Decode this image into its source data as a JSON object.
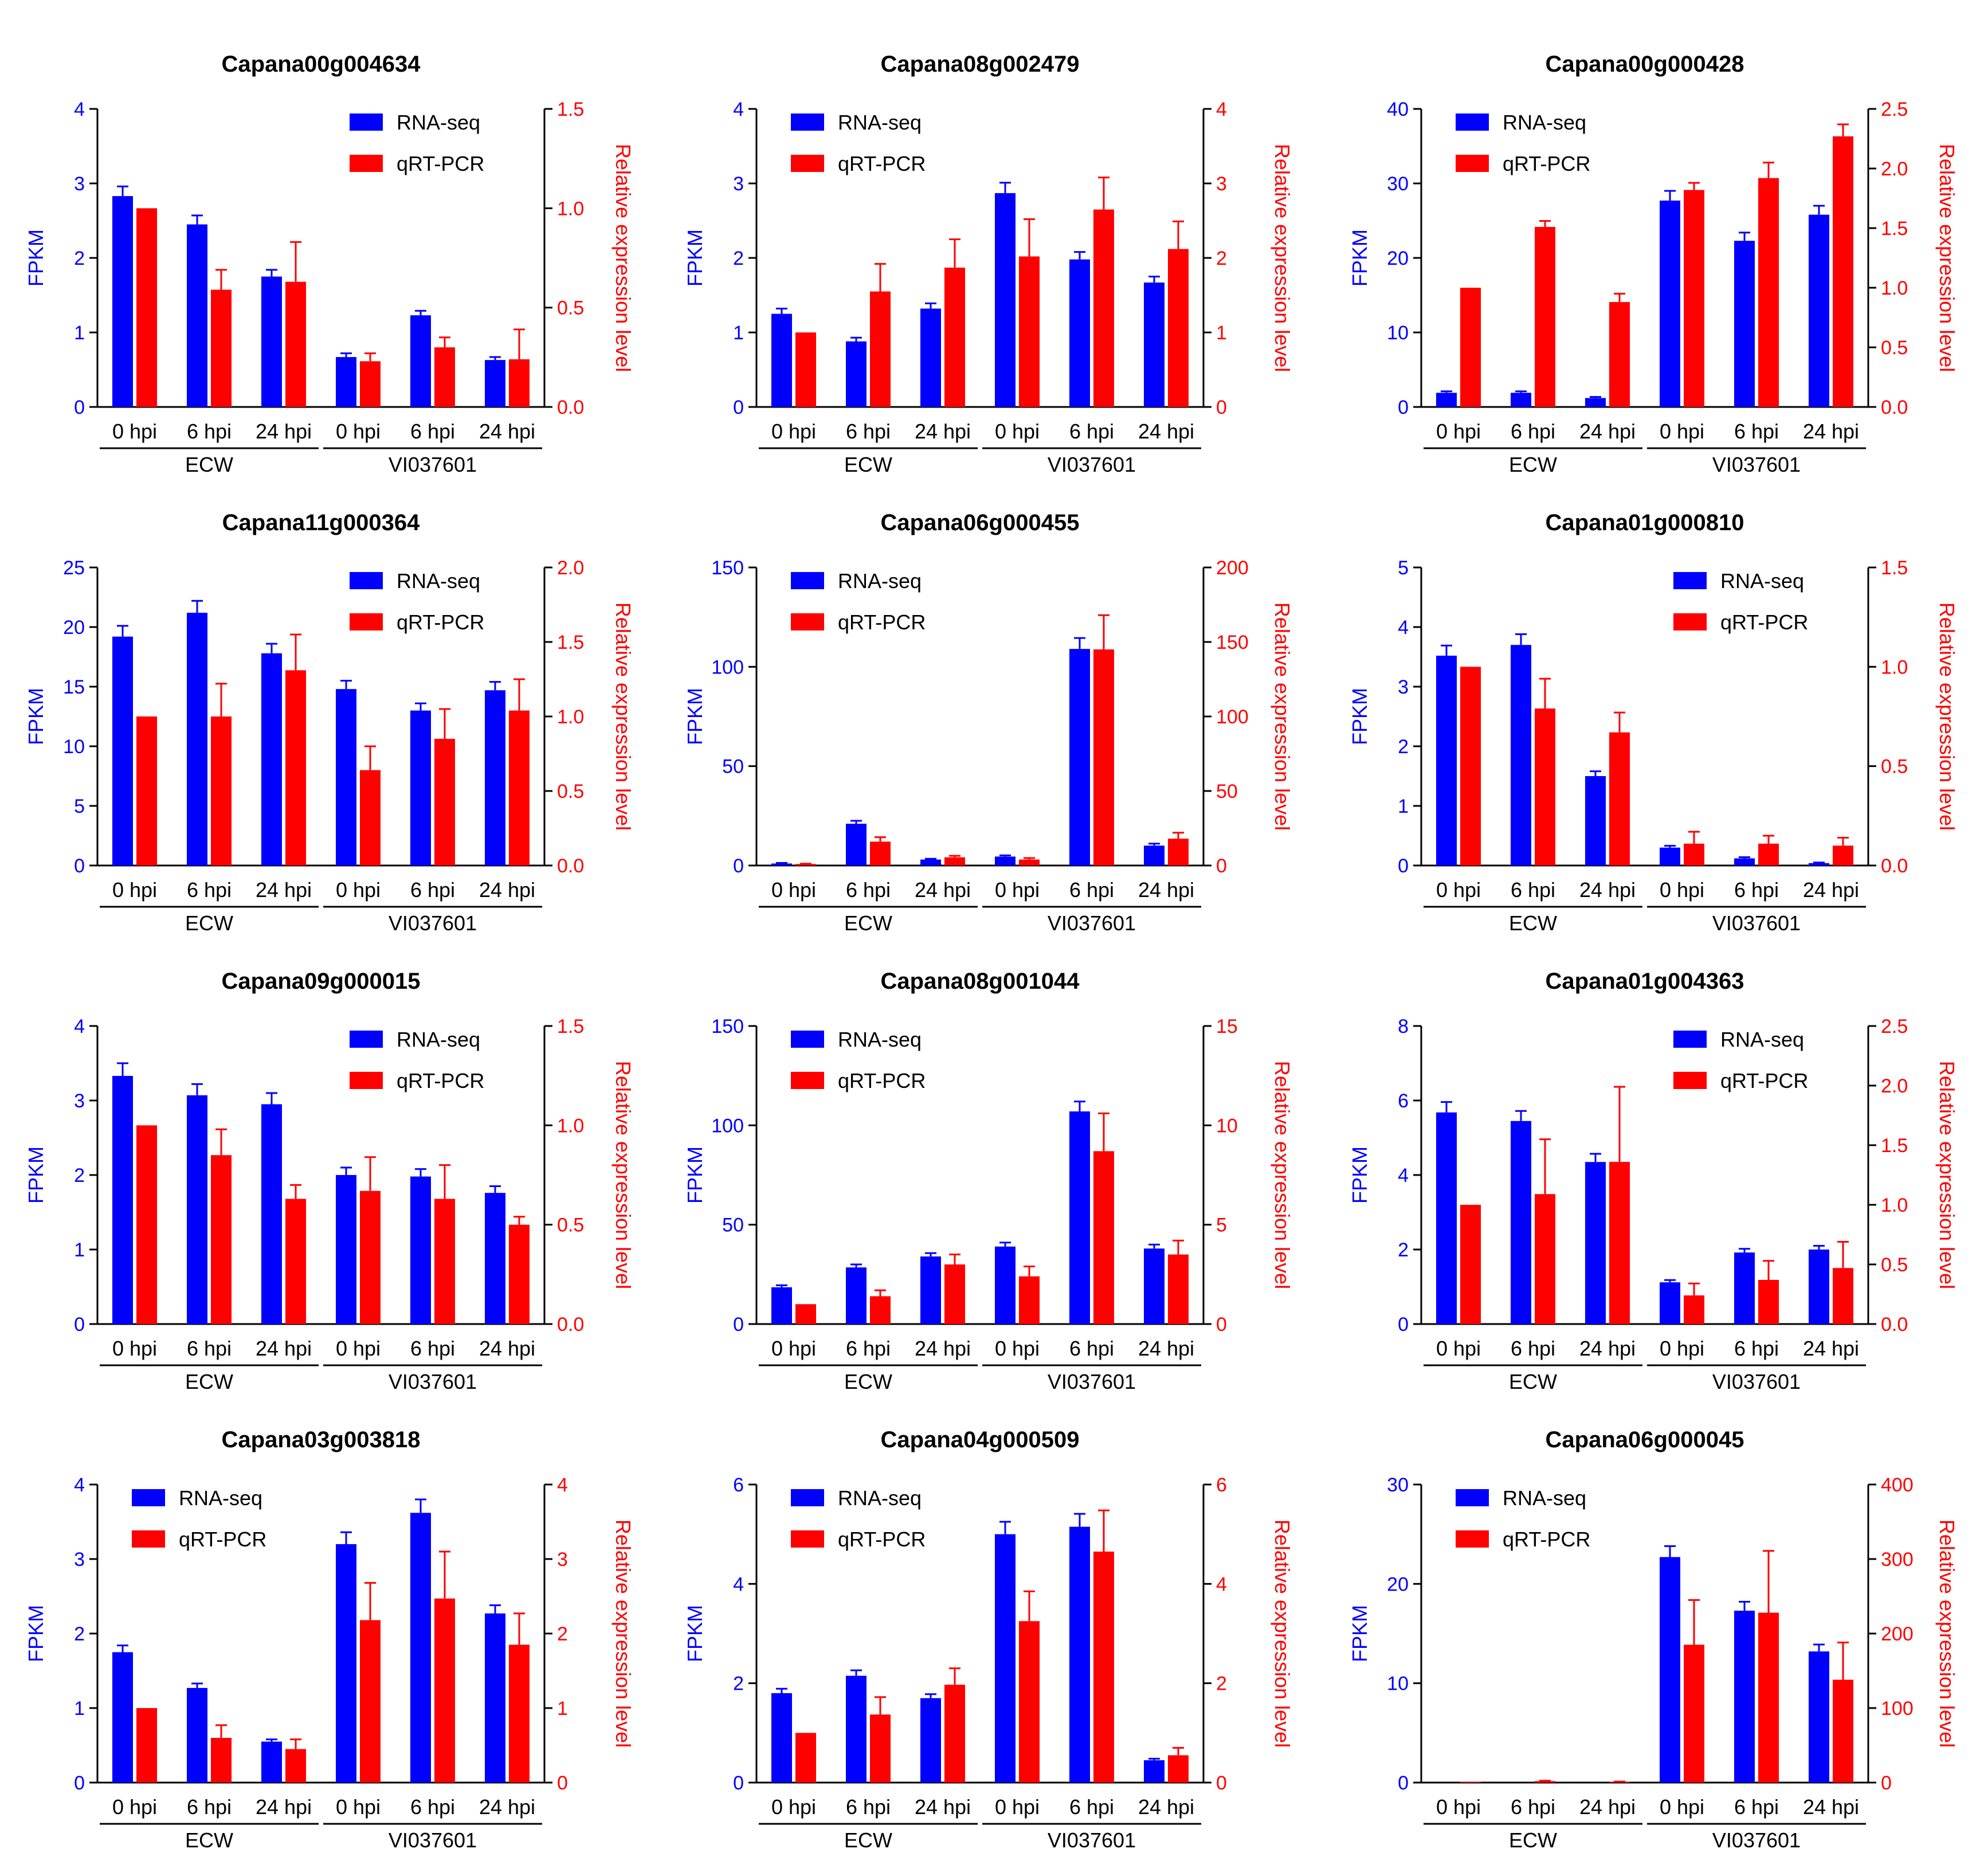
{
  "figure": {
    "legend_rna": "RNA-seq",
    "legend_qrt": "qRT-PCR",
    "left_axis_label": "FPKM",
    "right_axis_label": "Relative expression level"
  },
  "colors": {
    "rna": "#0000ff",
    "qrt": "#ff0000",
    "axis": "#000000"
  },
  "chart_data": [
    {
      "type": "bar",
      "title": "Capana00g004634",
      "categories": [
        "0 hpi",
        "6 hpi",
        "24 hpi",
        "0 hpi",
        "6 hpi",
        "24 hpi"
      ],
      "groups": [
        "ECW",
        "VI037601"
      ],
      "ylabel": "FPKM",
      "y2label": "Relative expression level",
      "ylim": [
        0,
        4
      ],
      "yticks": [
        "0",
        "1",
        "2",
        "3",
        "4"
      ],
      "y2lim": [
        0,
        1.5
      ],
      "y2ticks": [
        "0.0",
        "0.5",
        "1.0",
        "1.5"
      ],
      "legend_position": "top-right",
      "series": [
        {
          "name": "RNA-seq",
          "axis": "left",
          "values": [
            2.83,
            2.45,
            1.75,
            0.67,
            1.23,
            0.63
          ],
          "errors": [
            0.13,
            0.12,
            0.09,
            0.05,
            0.06,
            0.04
          ]
        },
        {
          "name": "qRT-PCR",
          "axis": "right",
          "values": [
            1.0,
            0.59,
            0.63,
            0.23,
            0.3,
            0.24
          ],
          "errors": [
            0,
            0.1,
            0.2,
            0.04,
            0.05,
            0.15
          ]
        }
      ]
    },
    {
      "type": "bar",
      "title": "Capana08g002479",
      "categories": [
        "0 hpi",
        "6 hpi",
        "24 hpi",
        "0 hpi",
        "6 hpi",
        "24 hpi"
      ],
      "groups": [
        "ECW",
        "VI037601"
      ],
      "ylabel": "FPKM",
      "y2label": "Relative expression level",
      "ylim": [
        0,
        4
      ],
      "yticks": [
        "0",
        "1",
        "2",
        "3",
        "4"
      ],
      "y2lim": [
        0,
        4
      ],
      "y2ticks": [
        "0",
        "1",
        "2",
        "3",
        "4"
      ],
      "legend_position": "top-left",
      "series": [
        {
          "name": "RNA-seq",
          "axis": "left",
          "values": [
            1.25,
            0.88,
            1.32,
            2.87,
            1.98,
            1.67
          ],
          "errors": [
            0.07,
            0.05,
            0.07,
            0.14,
            0.1,
            0.08
          ]
        },
        {
          "name": "qRT-PCR",
          "axis": "right",
          "values": [
            1.0,
            1.55,
            1.87,
            2.02,
            2.65,
            2.12
          ],
          "errors": [
            0,
            0.37,
            0.38,
            0.5,
            0.43,
            0.37
          ]
        }
      ]
    },
    {
      "type": "bar",
      "title": "Capana00g000428",
      "categories": [
        "0 hpi",
        "6 hpi",
        "24 hpi",
        "0 hpi",
        "6 hpi",
        "24 hpi"
      ],
      "groups": [
        "ECW",
        "VI037601"
      ],
      "ylabel": "FPKM",
      "y2label": "Relative expression level",
      "ylim": [
        0,
        40
      ],
      "yticks": [
        "0",
        "10",
        "20",
        "30",
        "40"
      ],
      "y2lim": [
        0,
        2.5
      ],
      "y2ticks": [
        "0.0",
        "0.5",
        "1.0",
        "1.5",
        "2.0",
        "2.5"
      ],
      "legend_position": "top-left",
      "series": [
        {
          "name": "RNA-seq",
          "axis": "left",
          "values": [
            1.9,
            1.9,
            1.2,
            27.7,
            22.3,
            25.8
          ],
          "errors": [
            0.2,
            0.2,
            0.15,
            1.3,
            1.1,
            1.2
          ]
        },
        {
          "name": "qRT-PCR",
          "axis": "right",
          "values": [
            1.0,
            1.51,
            0.88,
            1.82,
            1.92,
            2.27
          ],
          "errors": [
            0,
            0.05,
            0.07,
            0.06,
            0.13,
            0.1
          ]
        }
      ]
    },
    {
      "type": "bar",
      "title": "Capana11g000364",
      "categories": [
        "0 hpi",
        "6 hpi",
        "24 hpi",
        "0 hpi",
        "6 hpi",
        "24 hpi"
      ],
      "groups": [
        "ECW",
        "VI037601"
      ],
      "ylabel": "FPKM",
      "y2label": "Relative expression level",
      "ylim": [
        0,
        25
      ],
      "yticks": [
        "0",
        "5",
        "10",
        "15",
        "20",
        "25"
      ],
      "y2lim": [
        0,
        2.0
      ],
      "y2ticks": [
        "0.0",
        "0.5",
        "1.0",
        "1.5",
        "2.0"
      ],
      "legend_position": "top-right",
      "series": [
        {
          "name": "RNA-seq",
          "axis": "left",
          "values": [
            19.2,
            21.2,
            17.8,
            14.8,
            13.0,
            14.7
          ],
          "errors": [
            0.9,
            1.0,
            0.8,
            0.7,
            0.6,
            0.7
          ]
        },
        {
          "name": "qRT-PCR",
          "axis": "right",
          "values": [
            1.0,
            1.0,
            1.31,
            0.64,
            0.85,
            1.04
          ],
          "errors": [
            0,
            0.22,
            0.24,
            0.16,
            0.2,
            0.21
          ]
        }
      ]
    },
    {
      "type": "bar",
      "title": "Capana06g000455",
      "categories": [
        "0 hpi",
        "6 hpi",
        "24 hpi",
        "0 hpi",
        "6 hpi",
        "24 hpi"
      ],
      "groups": [
        "ECW",
        "VI037601"
      ],
      "ylabel": "FPKM",
      "y2label": "Relative expression level",
      "ylim": [
        0,
        150
      ],
      "yticks": [
        "0",
        "50",
        "100",
        "150"
      ],
      "y2lim": [
        0,
        200
      ],
      "y2ticks": [
        "0",
        "50",
        "100",
        "150",
        "200"
      ],
      "legend_position": "top-left",
      "series": [
        {
          "name": "RNA-seq",
          "axis": "left",
          "values": [
            1.0,
            21.0,
            3.0,
            4.5,
            109.0,
            10.0
          ],
          "errors": [
            0.3,
            1.5,
            0.4,
            0.6,
            5.5,
            1.0
          ]
        },
        {
          "name": "qRT-PCR",
          "axis": "right",
          "values": [
            1.0,
            16.0,
            5.5,
            4.0,
            145.0,
            18.0
          ],
          "errors": [
            0.2,
            3.0,
            1.0,
            1.0,
            23.0,
            4.0
          ]
        }
      ]
    },
    {
      "type": "bar",
      "title": "Capana01g000810",
      "categories": [
        "0 hpi",
        "6 hpi",
        "24 hpi",
        "0 hpi",
        "6 hpi",
        "24 hpi"
      ],
      "groups": [
        "ECW",
        "VI037601"
      ],
      "ylabel": "FPKM",
      "y2label": "Relative expression level",
      "ylim": [
        0,
        5
      ],
      "yticks": [
        "0",
        "1",
        "2",
        "3",
        "4",
        "5"
      ],
      "y2lim": [
        0,
        1.5
      ],
      "y2ticks": [
        "0.0",
        "0.5",
        "1.0",
        "1.5"
      ],
      "legend_position": "top-right",
      "series": [
        {
          "name": "RNA-seq",
          "axis": "left",
          "values": [
            3.52,
            3.7,
            1.5,
            0.3,
            0.12,
            0.04
          ],
          "errors": [
            0.17,
            0.18,
            0.08,
            0.03,
            0.02,
            0.01
          ]
        },
        {
          "name": "qRT-PCR",
          "axis": "right",
          "values": [
            1.0,
            0.79,
            0.67,
            0.11,
            0.11,
            0.1
          ],
          "errors": [
            0,
            0.15,
            0.1,
            0.06,
            0.04,
            0.04
          ]
        }
      ]
    },
    {
      "type": "bar",
      "title": "Capana09g000015",
      "categories": [
        "0 hpi",
        "6 hpi",
        "24 hpi",
        "0 hpi",
        "6 hpi",
        "24 hpi"
      ],
      "groups": [
        "ECW",
        "VI037601"
      ],
      "ylabel": "FPKM",
      "y2label": "Relative expression level",
      "ylim": [
        0,
        4
      ],
      "yticks": [
        "0",
        "1",
        "2",
        "3",
        "4"
      ],
      "y2lim": [
        0,
        1.5
      ],
      "y2ticks": [
        "0.0",
        "0.5",
        "1.0",
        "1.5"
      ],
      "legend_position": "top-right",
      "series": [
        {
          "name": "RNA-seq",
          "axis": "left",
          "values": [
            3.33,
            3.07,
            2.95,
            2.0,
            1.98,
            1.76
          ],
          "errors": [
            0.17,
            0.15,
            0.15,
            0.1,
            0.1,
            0.09
          ]
        },
        {
          "name": "qRT-PCR",
          "axis": "right",
          "values": [
            1.0,
            0.85,
            0.63,
            0.67,
            0.63,
            0.5
          ],
          "errors": [
            0,
            0.13,
            0.07,
            0.17,
            0.17,
            0.04
          ]
        }
      ]
    },
    {
      "type": "bar",
      "title": "Capana08g001044",
      "categories": [
        "0 hpi",
        "6 hpi",
        "24 hpi",
        "0 hpi",
        "6 hpi",
        "24 hpi"
      ],
      "groups": [
        "ECW",
        "VI037601"
      ],
      "ylabel": "FPKM",
      "y2label": "Relative expression level",
      "ylim": [
        0,
        150
      ],
      "yticks": [
        "0",
        "50",
        "100",
        "150"
      ],
      "y2lim": [
        0,
        15
      ],
      "y2ticks": [
        "0",
        "5",
        "10",
        "15"
      ],
      "legend_position": "top-left",
      "series": [
        {
          "name": "RNA-seq",
          "axis": "left",
          "values": [
            18.5,
            28.5,
            34.0,
            39.0,
            107.0,
            38.0
          ],
          "errors": [
            1.0,
            1.5,
            1.7,
            2.0,
            5.0,
            2.0
          ]
        },
        {
          "name": "qRT-PCR",
          "axis": "right",
          "values": [
            1.0,
            1.4,
            3.0,
            2.4,
            8.7,
            3.5
          ],
          "errors": [
            0,
            0.3,
            0.5,
            0.5,
            1.9,
            0.7
          ]
        }
      ]
    },
    {
      "type": "bar",
      "title": "Capana01g004363",
      "categories": [
        "0 hpi",
        "6 hpi",
        "24 hpi",
        "0 hpi",
        "6 hpi",
        "24 hpi"
      ],
      "groups": [
        "ECW",
        "VI037601"
      ],
      "ylabel": "FPKM",
      "y2label": "Relative expression level",
      "ylim": [
        0,
        8
      ],
      "yticks": [
        "0",
        "2",
        "4",
        "6",
        "8"
      ],
      "y2lim": [
        0,
        2.5
      ],
      "y2ticks": [
        "0.0",
        "0.5",
        "1.0",
        "1.5",
        "2.0",
        "2.5"
      ],
      "legend_position": "top-right",
      "series": [
        {
          "name": "RNA-seq",
          "axis": "left",
          "values": [
            5.68,
            5.45,
            4.35,
            1.12,
            1.92,
            2.0
          ],
          "errors": [
            0.28,
            0.27,
            0.22,
            0.06,
            0.1,
            0.1
          ]
        },
        {
          "name": "qRT-PCR",
          "axis": "right",
          "values": [
            1.0,
            1.09,
            1.36,
            0.24,
            0.37,
            0.47
          ],
          "errors": [
            0,
            0.46,
            0.63,
            0.1,
            0.16,
            0.22
          ]
        }
      ]
    },
    {
      "type": "bar",
      "title": "Capana03g003818",
      "categories": [
        "0 hpi",
        "6 hpi",
        "24 hpi",
        "0 hpi",
        "6 hpi",
        "24 hpi"
      ],
      "groups": [
        "ECW",
        "VI037601"
      ],
      "ylabel": "FPKM",
      "y2label": "Relative expression level",
      "ylim": [
        0,
        4
      ],
      "yticks": [
        "0",
        "1",
        "2",
        "3",
        "4"
      ],
      "y2lim": [
        0,
        4
      ],
      "y2ticks": [
        "0",
        "1",
        "2",
        "3",
        "4"
      ],
      "legend_position": "top-left",
      "series": [
        {
          "name": "RNA-seq",
          "axis": "left",
          "values": [
            1.75,
            1.27,
            0.55,
            3.2,
            3.62,
            2.27
          ],
          "errors": [
            0.09,
            0.06,
            0.03,
            0.16,
            0.18,
            0.11
          ]
        },
        {
          "name": "qRT-PCR",
          "axis": "right",
          "values": [
            1.0,
            0.6,
            0.45,
            2.18,
            2.47,
            1.85
          ],
          "errors": [
            0,
            0.17,
            0.13,
            0.5,
            0.63,
            0.42
          ]
        }
      ]
    },
    {
      "type": "bar",
      "title": "Capana04g000509",
      "categories": [
        "0 hpi",
        "6 hpi",
        "24 hpi",
        "0 hpi",
        "6 hpi",
        "24 hpi"
      ],
      "groups": [
        "ECW",
        "VI037601"
      ],
      "ylabel": "FPKM",
      "y2label": "Relative expression level",
      "ylim": [
        0,
        6
      ],
      "yticks": [
        "0",
        "2",
        "4",
        "6"
      ],
      "y2lim": [
        0,
        6
      ],
      "y2ticks": [
        "0",
        "2",
        "4",
        "6"
      ],
      "legend_position": "top-left",
      "series": [
        {
          "name": "RNA-seq",
          "axis": "left",
          "values": [
            1.8,
            2.15,
            1.7,
            5.0,
            5.15,
            0.45
          ],
          "errors": [
            0.09,
            0.11,
            0.08,
            0.25,
            0.26,
            0.03
          ]
        },
        {
          "name": "qRT-PCR",
          "axis": "right",
          "values": [
            1.0,
            1.37,
            1.97,
            3.25,
            4.65,
            0.55
          ],
          "errors": [
            0,
            0.35,
            0.33,
            0.6,
            0.83,
            0.15
          ]
        }
      ]
    },
    {
      "type": "bar",
      "title": "Capana06g000045",
      "categories": [
        "0 hpi",
        "6 hpi",
        "24 hpi",
        "0 hpi",
        "6 hpi",
        "24 hpi"
      ],
      "groups": [
        "ECW",
        "VI037601"
      ],
      "ylabel": "FPKM",
      "y2label": "Relative expression level",
      "ylim": [
        0,
        30
      ],
      "yticks": [
        "0",
        "10",
        "20",
        "30"
      ],
      "y2lim": [
        0,
        400
      ],
      "y2ticks": [
        "0",
        "100",
        "200",
        "300",
        "400"
      ],
      "legend_position": "top-left",
      "series": [
        {
          "name": "RNA-seq",
          "axis": "left",
          "values": [
            0,
            0,
            0,
            22.7,
            17.3,
            13.2
          ],
          "errors": [
            0,
            0,
            0,
            1.1,
            0.9,
            0.7
          ]
        },
        {
          "name": "qRT-PCR",
          "axis": "right",
          "values": [
            1.0,
            2.0,
            1.0,
            185.0,
            228.0,
            138.0
          ],
          "errors": [
            0,
            0.5,
            0.3,
            60,
            83,
            50
          ]
        }
      ]
    }
  ]
}
